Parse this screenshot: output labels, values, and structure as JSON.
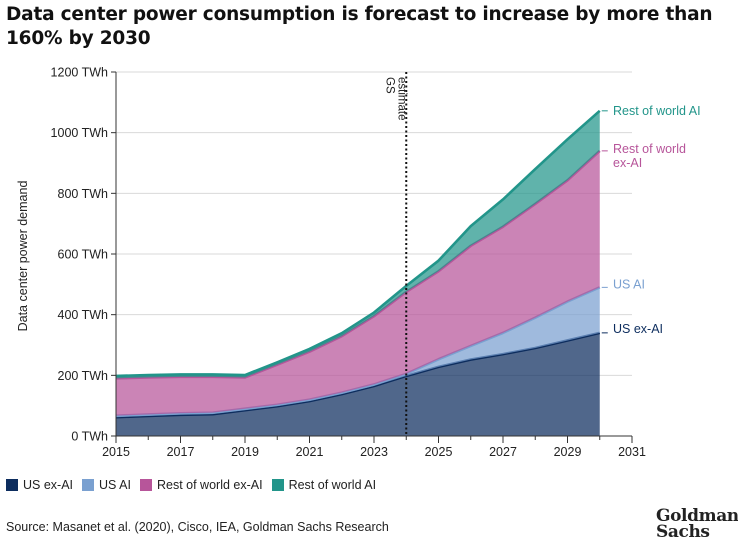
{
  "title": "Data center power consumption is forecast to increase by more than 160% by 2030",
  "legend": [
    {
      "label": "US ex-AI",
      "color": "#0d2d5e"
    },
    {
      "label": "US AI",
      "color": "#7aa0d0"
    },
    {
      "label": "Rest of world ex-AI",
      "color": "#b7559a"
    },
    {
      "label": "Rest of world AI",
      "color": "#22958a"
    }
  ],
  "source": "Source: Masanet et al. (2020), Cisco, IEA, Goldman Sachs Research",
  "logo": {
    "line1": "Goldman",
    "line2": "Sachs"
  },
  "chart_data": {
    "type": "area",
    "stacked": true,
    "title": "Data center power consumption is forecast to increase by more than 160% by 2030",
    "xlabel": "",
    "ylabel": "Data center power demand",
    "xlim": [
      2015,
      2031
    ],
    "ylim": [
      0,
      1200
    ],
    "x_ticks": [
      "2015",
      "2017",
      "2019",
      "2021",
      "2023",
      "2025",
      "2027",
      "2029",
      "2031"
    ],
    "y_ticks": [
      "0 TWh",
      "200 TWh",
      "400 TWh",
      "600 TWh",
      "800 TWh",
      "1000 TWh",
      "1200 TWh"
    ],
    "grid": "horizontal",
    "x": [
      2015,
      2016,
      2017,
      2018,
      2019,
      2020,
      2021,
      2022,
      2023,
      2024,
      2025,
      2026,
      2027,
      2028,
      2029,
      2030
    ],
    "series": [
      {
        "name": "US ex-AI",
        "color": "#0d2d5e",
        "values": [
          62,
          66,
          70,
          72,
          85,
          98,
          115,
          138,
          165,
          198,
          228,
          252,
          270,
          290,
          315,
          340
        ]
      },
      {
        "name": "US AI",
        "color": "#7aa0d0",
        "values": [
          5,
          5,
          5,
          5,
          5,
          5,
          5,
          5,
          5,
          7,
          25,
          45,
          70,
          100,
          128,
          150
        ]
      },
      {
        "name": "Rest of world ex-AI",
        "color": "#b7559a",
        "values": [
          123,
          122,
          120,
          118,
          103,
          132,
          158,
          186,
          225,
          270,
          290,
          330,
          350,
          375,
          400,
          450
        ]
      },
      {
        "name": "Rest of world AI",
        "color": "#22958a",
        "values": [
          8,
          8,
          8,
          8,
          8,
          8,
          9,
          10,
          12,
          20,
          35,
          65,
          90,
          115,
          135,
          132
        ]
      }
    ],
    "vline": {
      "x": 2024,
      "label_line1": "GS",
      "label_line2": "estimate"
    },
    "end_labels": [
      {
        "series": "Rest of world AI",
        "lines": [
          "Rest of world AI"
        ]
      },
      {
        "series": "Rest of world ex-AI",
        "lines": [
          "Rest of world",
          "ex-AI"
        ]
      },
      {
        "series": "US AI",
        "lines": [
          "US AI"
        ]
      },
      {
        "series": "US ex-AI",
        "lines": [
          "US ex-AI"
        ]
      }
    ]
  }
}
